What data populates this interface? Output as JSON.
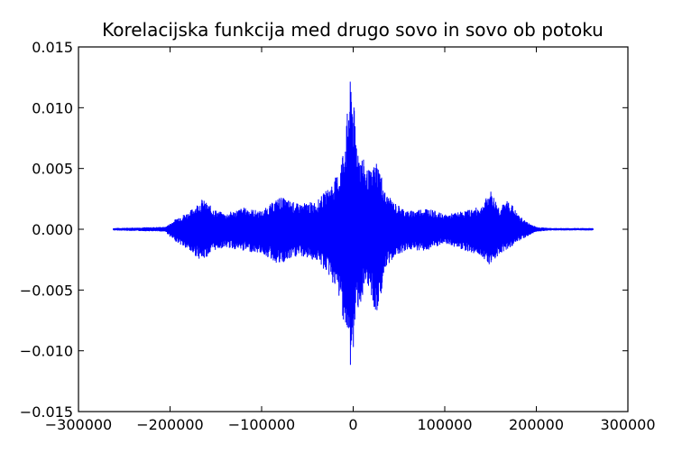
{
  "chart_data": {
    "type": "line",
    "title": "Korelacijska funkcija med drugo sovo in sovo ob potoku",
    "xlabel": "",
    "ylabel": "",
    "xlim": [
      -300000,
      300000
    ],
    "ylim": [
      -0.015,
      0.015
    ],
    "x_ticks": [
      -300000,
      -200000,
      -100000,
      0,
      100000,
      200000,
      300000
    ],
    "x_tick_labels": [
      "−300000",
      "−200000",
      "−100000",
      "0",
      "100000",
      "200000",
      "300000"
    ],
    "y_ticks": [
      0.015,
      0.01,
      0.005,
      0.0,
      -0.005,
      -0.01,
      -0.015
    ],
    "y_tick_labels": [
      "0.015",
      "0.010",
      "0.005",
      "0.000",
      "−0.005",
      "−0.010",
      "−0.015"
    ],
    "grid": false,
    "line_color": "#0000ff",
    "series": [
      {
        "x_range": [
          -262000,
          262000
        ],
        "envelope": {
          "x": [
            -262000,
            -205000,
            -198000,
            -190000,
            -180000,
            -165000,
            -150000,
            -140000,
            -120000,
            -100000,
            -80000,
            -60000,
            -40000,
            -25000,
            -15000,
            -8000,
            -4000,
            -2000,
            0,
            2000,
            5000,
            10000,
            15000,
            20000,
            25000,
            30000,
            35000,
            45000,
            60000,
            80000,
            100000,
            120000,
            140000,
            150000,
            160000,
            170000,
            180000,
            190000,
            200000,
            215000,
            262000
          ],
          "upper": [
            0.0001,
            0.0002,
            0.0006,
            0.0011,
            0.0014,
            0.0025,
            0.0016,
            0.0013,
            0.0018,
            0.0015,
            0.0027,
            0.0021,
            0.0023,
            0.0036,
            0.0048,
            0.0082,
            0.0118,
            0.0128,
            0.011,
            0.009,
            0.007,
            0.006,
            0.005,
            0.0048,
            0.0058,
            0.0048,
            0.003,
            0.0022,
            0.0015,
            0.0018,
            0.0012,
            0.0015,
            0.0019,
            0.0032,
            0.0018,
            0.0025,
            0.0012,
            0.0006,
            0.0002,
            0.0001,
            0.0001
          ],
          "lower": [
            -0.0001,
            -0.0002,
            -0.0008,
            -0.0012,
            -0.0018,
            -0.0026,
            -0.0017,
            -0.0015,
            -0.0018,
            -0.002,
            -0.003,
            -0.0022,
            -0.0026,
            -0.004,
            -0.0058,
            -0.0085,
            -0.011,
            -0.012,
            -0.0105,
            -0.008,
            -0.0065,
            -0.006,
            -0.005,
            -0.0055,
            -0.0078,
            -0.0055,
            -0.0035,
            -0.0022,
            -0.0017,
            -0.0018,
            -0.0012,
            -0.0017,
            -0.0022,
            -0.003,
            -0.002,
            -0.0016,
            -0.001,
            -0.0006,
            -0.0002,
            -0.0001,
            -0.0001
          ]
        }
      }
    ]
  }
}
